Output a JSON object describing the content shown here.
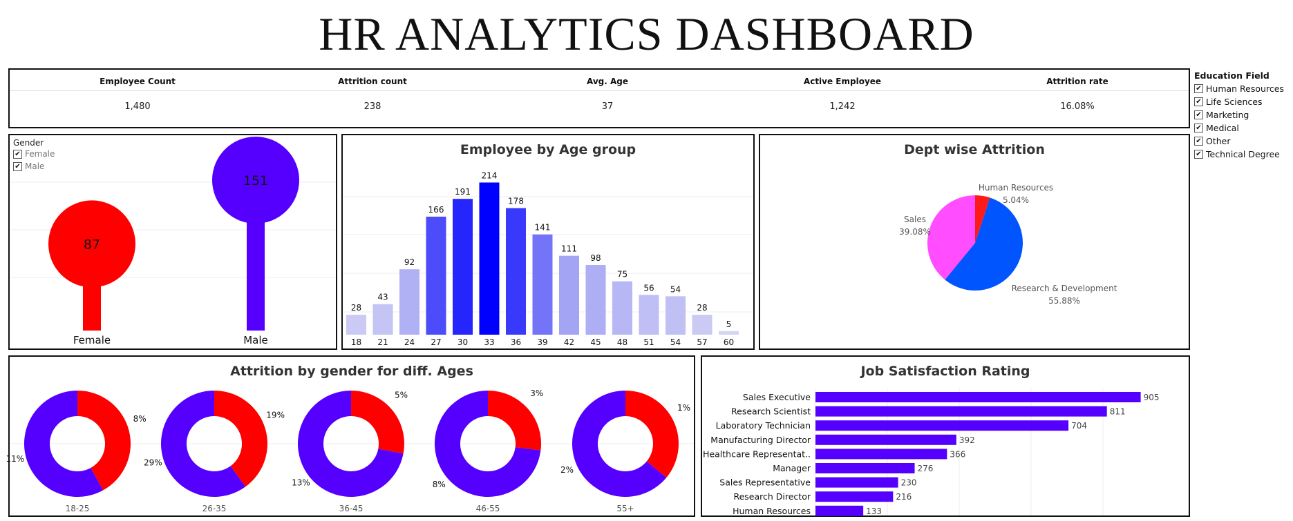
{
  "title": "HR ANALYTICS DASHBOARD",
  "kpis": [
    {
      "label": "Employee Count",
      "value": "1,480"
    },
    {
      "label": "Attrition count",
      "value": "238"
    },
    {
      "label": "Avg. Age",
      "value": "37"
    },
    {
      "label": "Active Employee",
      "value": "1,242"
    },
    {
      "label": "Attrition rate",
      "value": "16.08%"
    }
  ],
  "education_filter": {
    "title": "Education Field",
    "options": [
      "Human Resources",
      "Life Sciences",
      "Marketing",
      "Medical",
      "Other",
      "Technical Degree"
    ]
  },
  "gender_panel": {
    "filter_title": "Gender",
    "options": [
      "Female",
      "Male"
    ]
  },
  "colors": {
    "female": "#ff0000",
    "male": "#5500ff",
    "hr": "#ff1a1a",
    "rnd": "#0055ff",
    "sales": "#ff4dff",
    "bar": "#5500ff"
  },
  "chart_data": [
    {
      "type": "lollipop",
      "categories": [
        "Female",
        "Male"
      ],
      "values": [
        87,
        151
      ]
    },
    {
      "type": "bar",
      "title": "Employee by Age group",
      "categories": [
        "18",
        "21",
        "24",
        "27",
        "30",
        "33",
        "36",
        "39",
        "42",
        "45",
        "48",
        "51",
        "54",
        "57",
        "60"
      ],
      "values": [
        28,
        43,
        92,
        166,
        191,
        214,
        178,
        141,
        111,
        98,
        75,
        56,
        54,
        28,
        5
      ]
    },
    {
      "type": "pie",
      "title": "Dept wise Attrition",
      "slices": [
        {
          "name": "Human Resources",
          "pct": "5.04%",
          "value": 5.04
        },
        {
          "name": "Research & Development",
          "pct": "55.88%",
          "value": 55.88
        },
        {
          "name": "Sales",
          "pct": "39.08%",
          "value": 39.08
        }
      ]
    },
    {
      "type": "donut",
      "title": "Attrition by gender for diff. Ages",
      "groups": [
        {
          "age": "18-25",
          "female_label": "8%",
          "male_label": "11%",
          "female_frac": 0.42
        },
        {
          "age": "26-35",
          "female_label": "19%",
          "male_label": "29%",
          "female_frac": 0.4
        },
        {
          "age": "36-45",
          "female_label": "5%",
          "male_label": "13%",
          "female_frac": 0.28
        },
        {
          "age": "46-55",
          "female_label": "3%",
          "male_label": "8%",
          "female_frac": 0.27
        },
        {
          "age": "55+",
          "female_label": "1%",
          "male_label": "2%",
          "female_frac": 0.36
        }
      ]
    },
    {
      "type": "bar",
      "title": "Job Satisfaction Rating",
      "orientation": "horizontal",
      "categories": [
        "Sales Executive",
        "Research Scientist",
        "Laboratory Technician",
        "Manufacturing Director",
        "Healthcare Representat..",
        "Manager",
        "Sales Representative",
        "Research Director",
        "Human Resources"
      ],
      "values": [
        905,
        811,
        704,
        392,
        366,
        276,
        230,
        216,
        133
      ]
    }
  ]
}
